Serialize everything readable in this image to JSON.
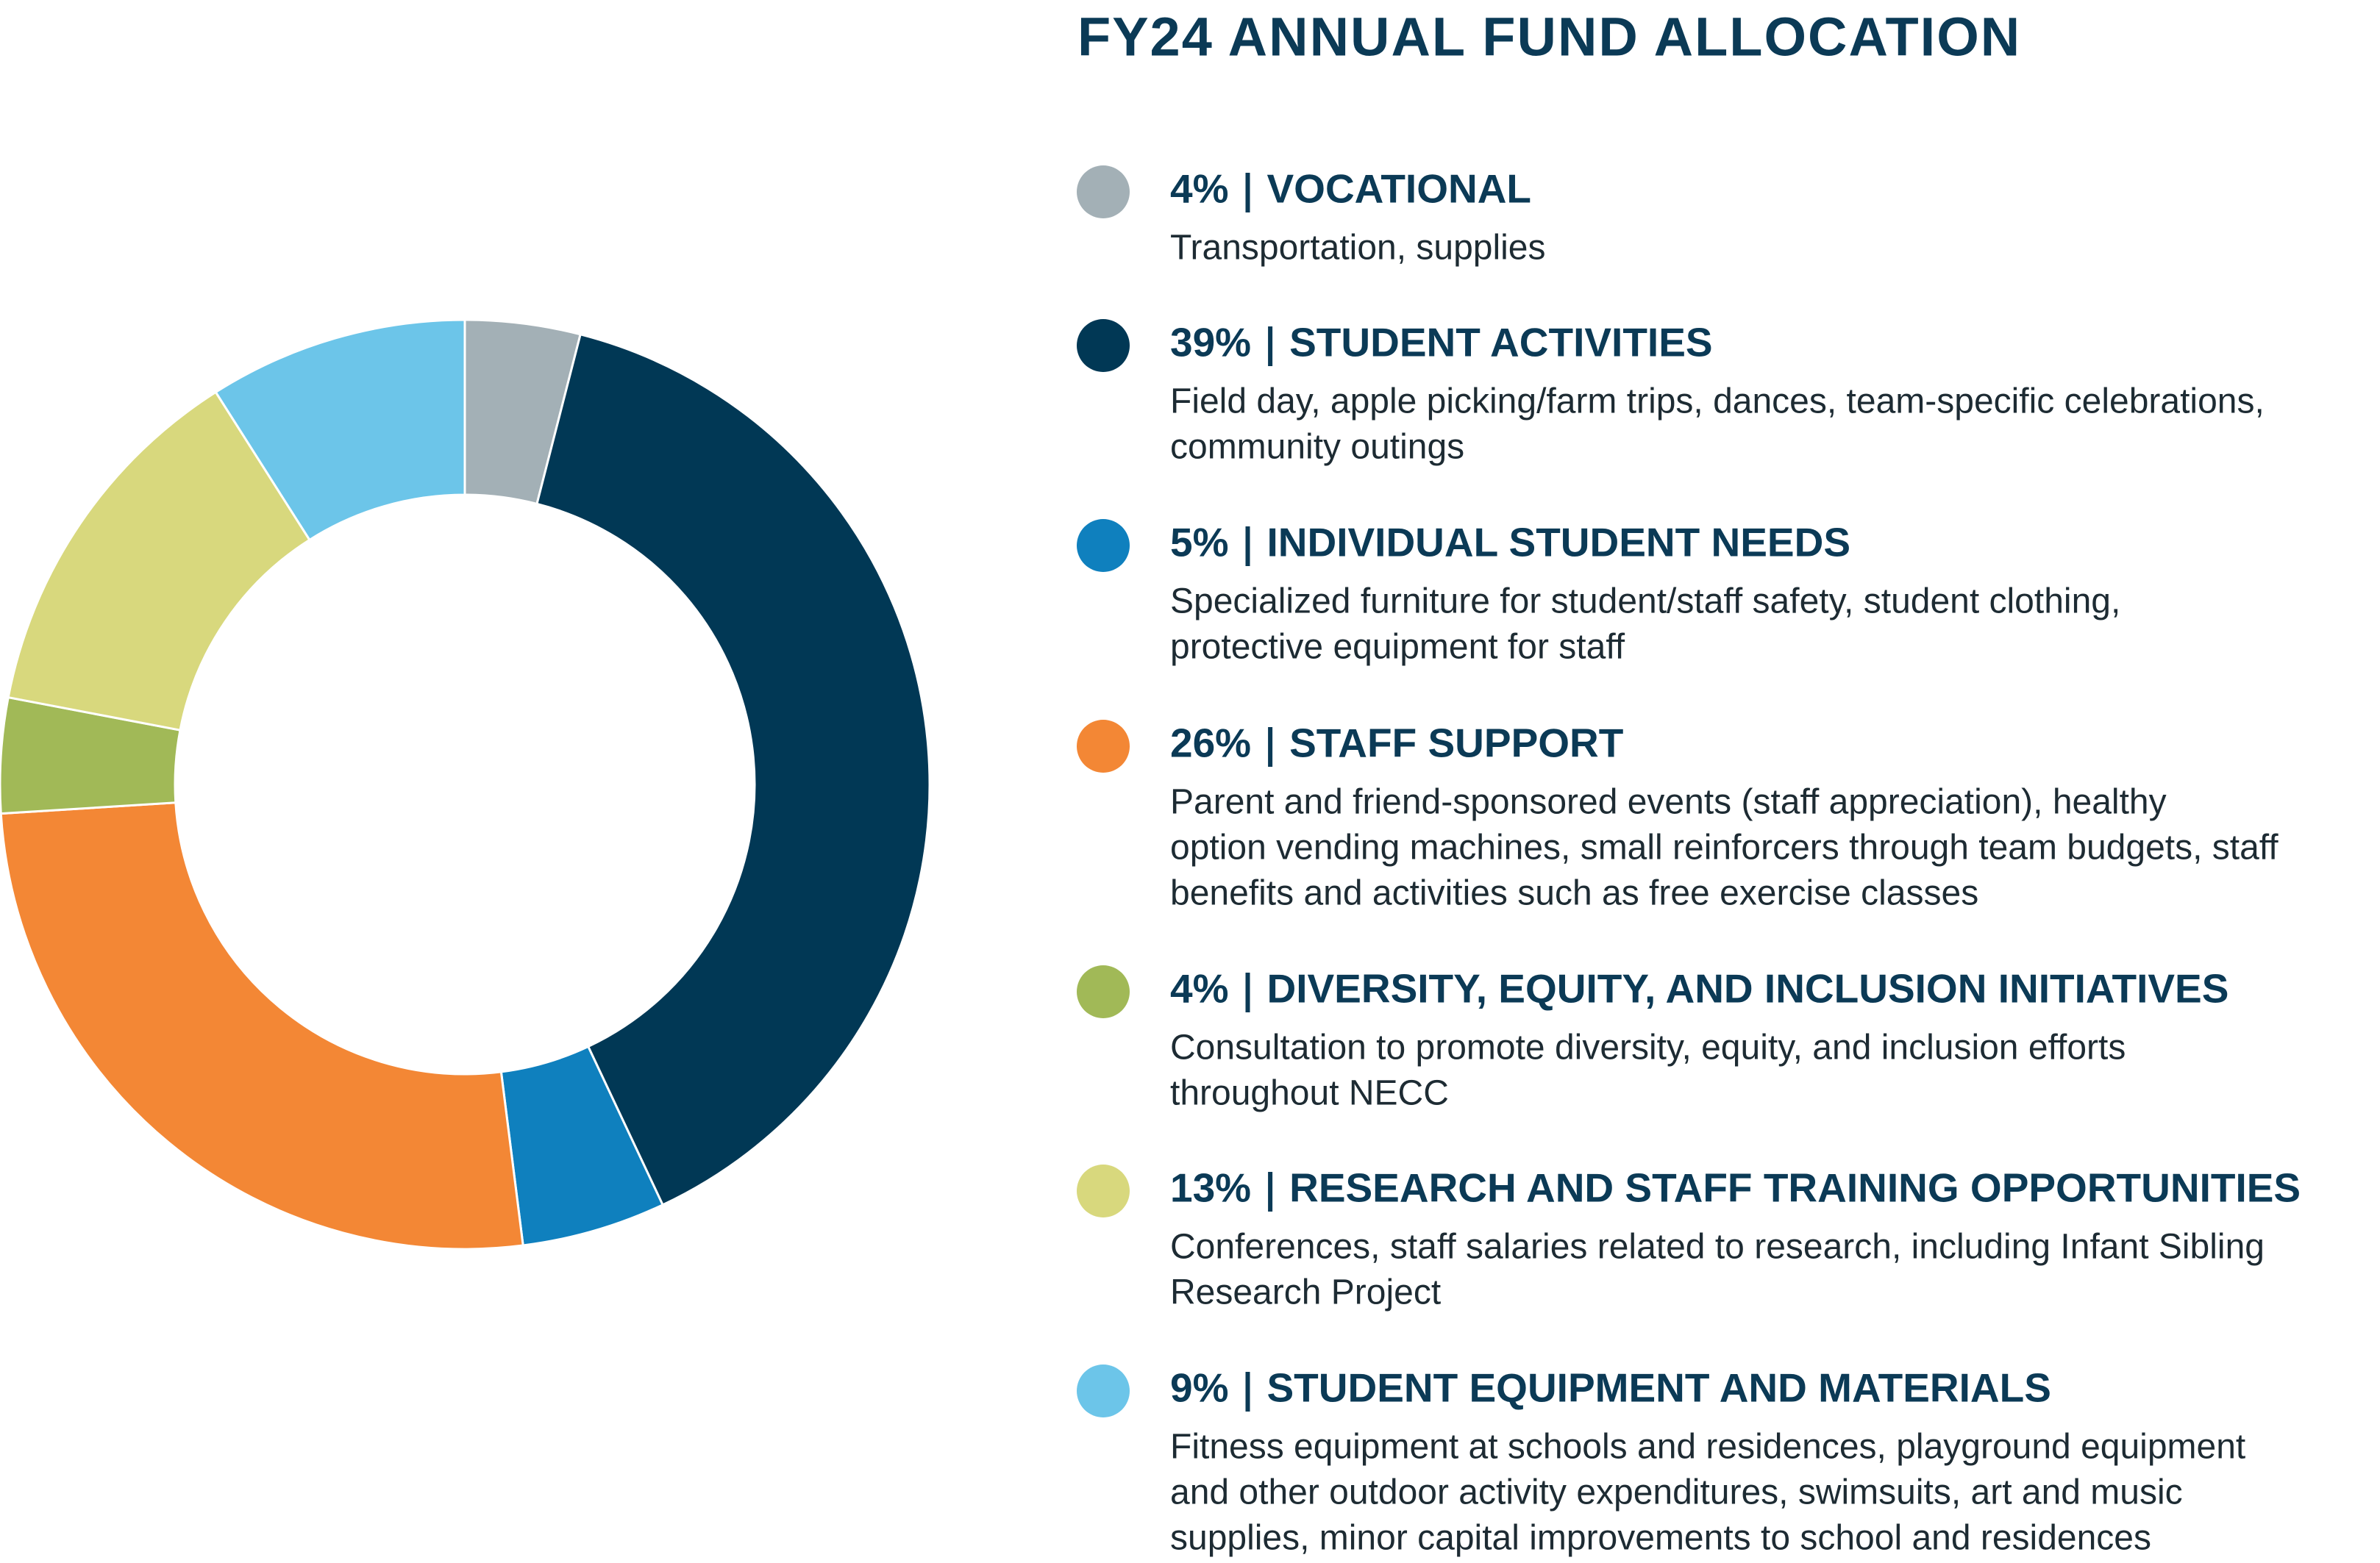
{
  "chart_data": {
    "type": "donut",
    "title": "FY24 ANNUAL FUND ALLOCATION",
    "categories": [
      "VOCATIONAL",
      "STUDENT ACTIVITIES",
      "INDIVIDUAL STUDENT NEEDS",
      "STAFF SUPPORT",
      "DIVERSITY, EQUITY, AND INCLUSION INITIATIVES",
      "RESEARCH AND STAFF TRAINING OPPORTUNITIES",
      "STUDENT EQUIPMENT AND MATERIALS"
    ],
    "values": [
      4,
      39,
      5,
      26,
      4,
      13,
      9
    ],
    "value_labels": [
      "4%",
      "39%",
      "5%",
      "26%",
      "4%",
      "13%",
      "9%"
    ],
    "colors": [
      "#a3b0b6",
      "#013855",
      "#0f80be",
      "#f38735",
      "#a1b957",
      "#d8d87d",
      "#6cc5e9"
    ],
    "descriptions": [
      [
        "Transportation, supplies"
      ],
      [
        "Field day, apple picking/farm trips, dances, team-specific celebrations,",
        "community outings"
      ],
      [
        "Specialized furniture for student/staff safety, student clothing,",
        "protective equipment for staff"
      ],
      [
        "Parent and friend-sponsored events (staff appreciation), healthy",
        "option vending machines, small reinforcers through team budgets, staff",
        "benefits and activities such as free exercise classes"
      ],
      [
        "Consultation to promote diversity, equity, and inclusion efforts",
        "throughout NECC"
      ],
      [
        "Conferences, staff salaries related to research, including Infant Sibling",
        "Research Project"
      ],
      [
        "Fitness equipment at schools and residences, playground equipment",
        "and other outdoor activity expenditures, swimsuits, art and music",
        "supplies, minor capital  improvements to school and residences"
      ]
    ]
  }
}
